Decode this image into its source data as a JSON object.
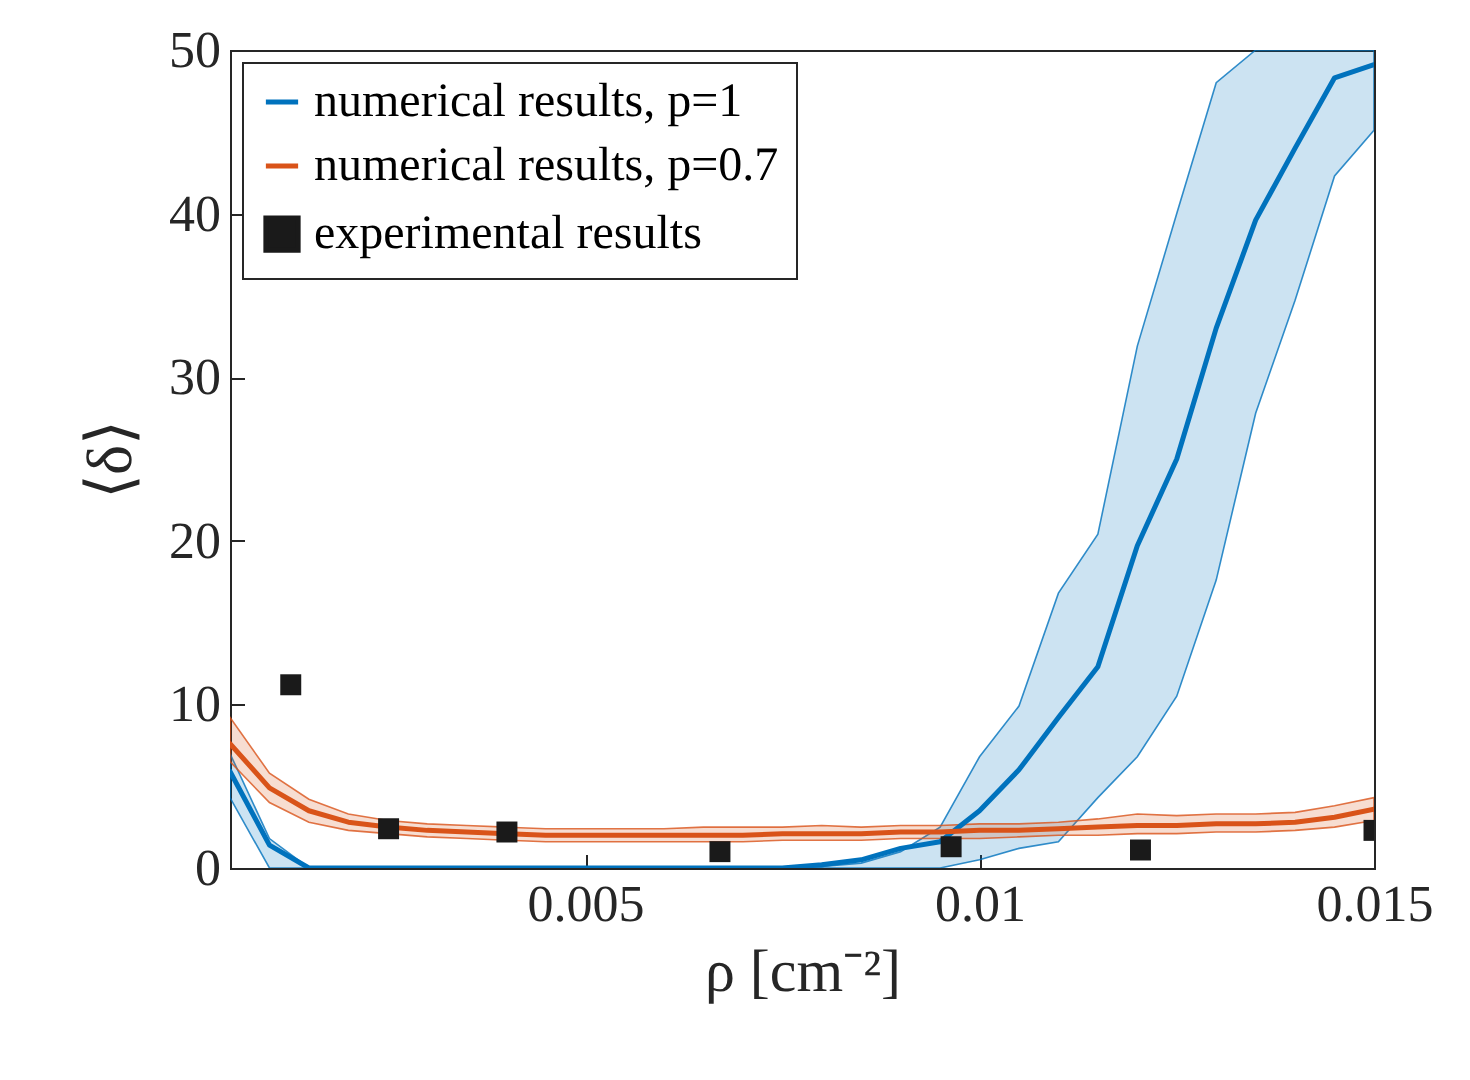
{
  "chart_data": {
    "type": "line",
    "xlabel": "ρ [cm⁻²]",
    "ylabel": "⟨δ⟩",
    "x": [
      0.0005,
      0.001,
      0.0015,
      0.002,
      0.0025,
      0.003,
      0.0035,
      0.004,
      0.0045,
      0.005,
      0.0055,
      0.006,
      0.0065,
      0.007,
      0.0075,
      0.008,
      0.0085,
      0.009,
      0.0095,
      0.01,
      0.0105,
      0.011,
      0.0115,
      0.012,
      0.0125,
      0.013,
      0.0135,
      0.014,
      0.0145,
      0.015
    ],
    "series": [
      {
        "name": "numerical results, p=1",
        "color": "#0072bd",
        "values": [
          5.9,
          1.4,
          0,
          0,
          0,
          0,
          0,
          0,
          0,
          0,
          0,
          0,
          0,
          0,
          0,
          0.2,
          0.5,
          1.2,
          1.6,
          3.5,
          6.0,
          9.2,
          12.3,
          19.7,
          25.0,
          33.0,
          39.6,
          44.0,
          48.3,
          49.1
        ],
        "lower": [
          4.3,
          0,
          0,
          0,
          0,
          0,
          0,
          0,
          0,
          0,
          0,
          0,
          0,
          0,
          0,
          0,
          0,
          0,
          0,
          0.5,
          1.2,
          1.6,
          4.3,
          6.8,
          10.5,
          17.6,
          27.8,
          34.7,
          42.3,
          45.1
        ],
        "upper": [
          7.0,
          1.8,
          0,
          0,
          0,
          0,
          0,
          0,
          0,
          0,
          0,
          0,
          0,
          0,
          0,
          0.1,
          0.3,
          1.0,
          2.5,
          6.8,
          9.9,
          16.8,
          20.4,
          31.9,
          40.0,
          48.0,
          50,
          50,
          50,
          50
        ]
      },
      {
        "name": "numerical results, p=0.7",
        "color": "#d95319",
        "values": [
          7.6,
          4.9,
          3.5,
          2.8,
          2.5,
          2.3,
          2.2,
          2.1,
          2.0,
          2.0,
          2.0,
          2.0,
          2.0,
          2.0,
          2.1,
          2.1,
          2.1,
          2.2,
          2.2,
          2.3,
          2.3,
          2.4,
          2.5,
          2.6,
          2.6,
          2.7,
          2.7,
          2.8,
          3.1,
          3.6
        ],
        "lower": [
          6.5,
          4.0,
          2.8,
          2.3,
          2.1,
          1.9,
          1.8,
          1.7,
          1.6,
          1.6,
          1.6,
          1.6,
          1.6,
          1.6,
          1.7,
          1.7,
          1.7,
          1.8,
          1.8,
          1.8,
          1.9,
          2.0,
          2.0,
          2.1,
          2.1,
          2.2,
          2.2,
          2.3,
          2.5,
          2.9
        ],
        "upper": [
          9.2,
          5.8,
          4.2,
          3.3,
          2.9,
          2.7,
          2.6,
          2.5,
          2.4,
          2.4,
          2.4,
          2.4,
          2.5,
          2.5,
          2.5,
          2.6,
          2.5,
          2.6,
          2.6,
          2.7,
          2.7,
          2.8,
          3.0,
          3.3,
          3.2,
          3.3,
          3.3,
          3.4,
          3.8,
          4.3
        ]
      },
      {
        "name": "experimental results",
        "color": "#1a1a1a",
        "type": "scatter",
        "marker": "square",
        "x": [
          0.00127,
          0.00251,
          0.00401,
          0.00671,
          0.00964,
          0.01204,
          0.015
        ],
        "values": [
          11.2,
          2.4,
          2.2,
          1.0,
          1.3,
          1.1,
          2.3
        ]
      }
    ],
    "xlim": [
      0.0005,
      0.015
    ],
    "xticks": [
      0.005,
      0.01,
      0.015
    ],
    "ylim": [
      0,
      50
    ],
    "yticks": [
      0,
      10,
      20,
      30,
      40,
      50
    ],
    "legend": "top left"
  }
}
